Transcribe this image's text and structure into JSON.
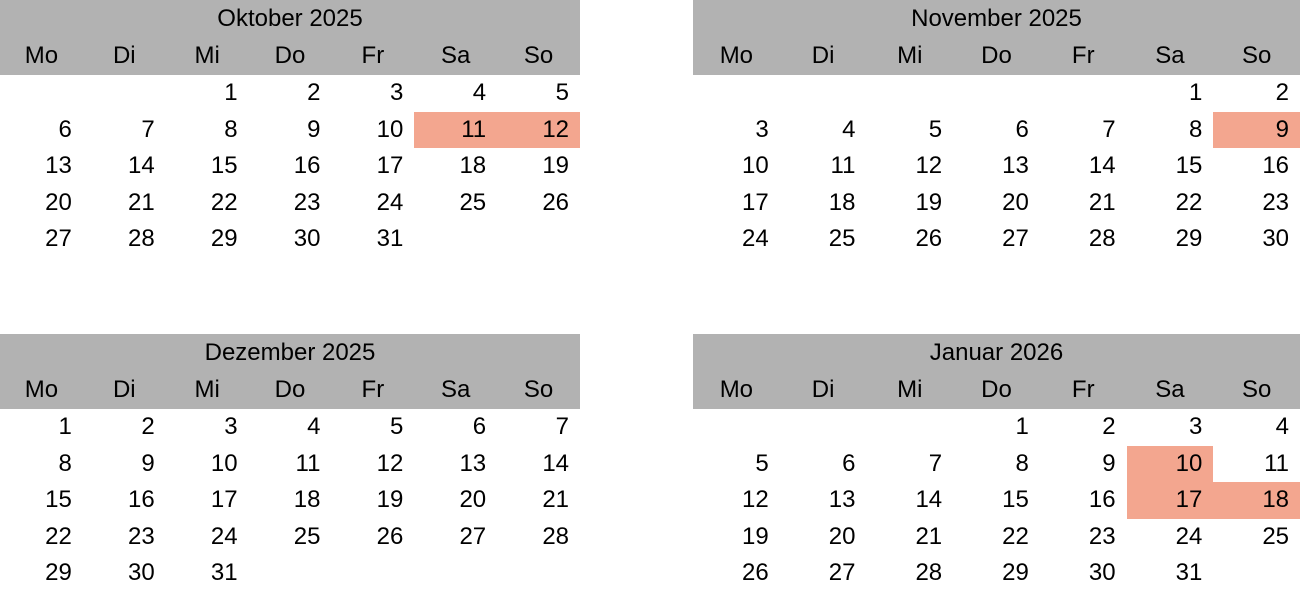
{
  "colors": {
    "header_gray": "#b2b2b2",
    "highlight_salmon": "#f3a68f",
    "text": "#000000",
    "background": "#ffffff"
  },
  "weekdays": [
    "Mo",
    "Di",
    "Mi",
    "Do",
    "Fr",
    "Sa",
    "So"
  ],
  "calendars": [
    {
      "title": "Oktober 2025",
      "weeks": [
        [
          "",
          "",
          "1",
          "2",
          "3",
          "4",
          "5"
        ],
        [
          "6",
          "7",
          "8",
          "9",
          "10",
          "11",
          "12"
        ],
        [
          "13",
          "14",
          "15",
          "16",
          "17",
          "18",
          "19"
        ],
        [
          "20",
          "21",
          "22",
          "23",
          "24",
          "25",
          "26"
        ],
        [
          "27",
          "28",
          "29",
          "30",
          "31",
          "",
          ""
        ]
      ],
      "highlighted": [
        "11",
        "12"
      ]
    },
    {
      "title": "November 2025",
      "weeks": [
        [
          "",
          "",
          "",
          "",
          "",
          "1",
          "2"
        ],
        [
          "3",
          "4",
          "5",
          "6",
          "7",
          "8",
          "9"
        ],
        [
          "10",
          "11",
          "12",
          "13",
          "14",
          "15",
          "16"
        ],
        [
          "17",
          "18",
          "19",
          "20",
          "21",
          "22",
          "23"
        ],
        [
          "24",
          "25",
          "26",
          "27",
          "28",
          "29",
          "30"
        ]
      ],
      "highlighted": [
        "9"
      ]
    },
    {
      "title": "Dezember 2025",
      "weeks": [
        [
          "1",
          "2",
          "3",
          "4",
          "5",
          "6",
          "7"
        ],
        [
          "8",
          "9",
          "10",
          "11",
          "12",
          "13",
          "14"
        ],
        [
          "15",
          "16",
          "17",
          "18",
          "19",
          "20",
          "21"
        ],
        [
          "22",
          "23",
          "24",
          "25",
          "26",
          "27",
          "28"
        ],
        [
          "29",
          "30",
          "31",
          "",
          "",
          "",
          ""
        ]
      ],
      "highlighted": []
    },
    {
      "title": "Januar 2026",
      "weeks": [
        [
          "",
          "",
          "",
          "1",
          "2",
          "3",
          "4"
        ],
        [
          "5",
          "6",
          "7",
          "8",
          "9",
          "10",
          "11"
        ],
        [
          "12",
          "13",
          "14",
          "15",
          "16",
          "17",
          "18"
        ],
        [
          "19",
          "20",
          "21",
          "22",
          "23",
          "24",
          "25"
        ],
        [
          "26",
          "27",
          "28",
          "29",
          "30",
          "31",
          ""
        ]
      ],
      "highlighted": [
        "10",
        "17",
        "18"
      ]
    }
  ]
}
